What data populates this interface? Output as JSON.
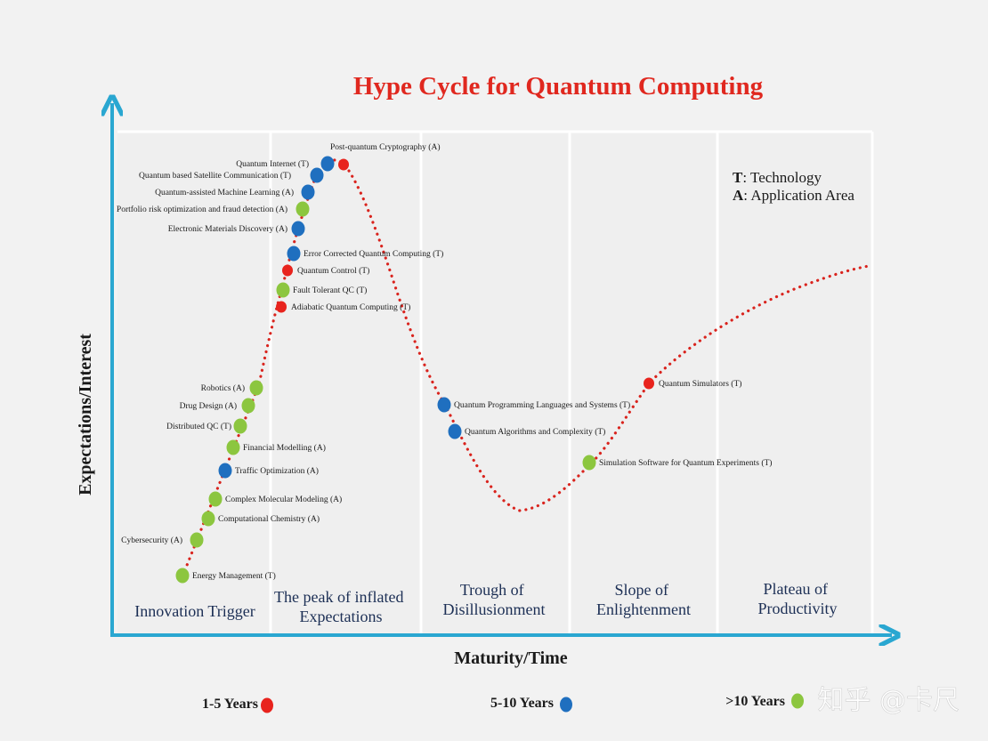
{
  "chart_data": {
    "type": "scatter",
    "title": "Hype Cycle for Quantum Computing",
    "xlabel": "Maturity/Time",
    "ylabel": "Expectations/Interest",
    "key": [
      {
        "letter": "T",
        "text": ": Technology"
      },
      {
        "letter": "A",
        "text": ": Application Area"
      }
    ],
    "phases": [
      [
        "Innovation Trigger"
      ],
      [
        "The peak of inflated",
        "Expectations"
      ],
      [
        "Trough of",
        "Disillusionment"
      ],
      [
        "Slope of",
        "Enlightenment"
      ],
      [
        "Plateau of",
        "Productivity"
      ]
    ],
    "legend": [
      {
        "label": "1-5 Years",
        "color": "#e8231d"
      },
      {
        "label": "5-10 Years",
        "color": "#1f6fbf"
      },
      {
        "label": ">10 Years",
        "color": "#8cc63f"
      }
    ],
    "curve_color": "#d9231d",
    "axis_color": "#2aa7d1",
    "items": [
      {
        "label": "Energy Management (T)",
        "category": ">10 Years",
        "label_side": "right"
      },
      {
        "label": "Cybersecurity (A)",
        "category": ">10 Years",
        "label_side": "left"
      },
      {
        "label": "Computational Chemistry (A)",
        "category": ">10 Years",
        "label_side": "right"
      },
      {
        "label": "Complex Molecular Modeling (A)",
        "category": ">10 Years",
        "label_side": "right"
      },
      {
        "label": "Traffic Optimization (A)",
        "category": "5-10 Years",
        "label_side": "right"
      },
      {
        "label": "Financial Modelling (A)",
        "category": ">10 Years",
        "label_side": "right"
      },
      {
        "label": "Distributed QC (T)",
        "category": ">10 Years",
        "label_side": "left"
      },
      {
        "label": "Drug Design (A)",
        "category": ">10 Years",
        "label_side": "left"
      },
      {
        "label": "Robotics (A)",
        "category": ">10 Years",
        "label_side": "left"
      },
      {
        "label": "Adiabatic Quantum Computing (T)",
        "category": "1-5 Years",
        "label_side": "right"
      },
      {
        "label": "Fault Tolerant QC (T)",
        "category": ">10 Years",
        "label_side": "right"
      },
      {
        "label": "Quantum Control (T)",
        "category": "1-5 Years",
        "label_side": "right"
      },
      {
        "label": "Error Corrected Quantum Computing (T)",
        "category": "5-10 Years",
        "label_side": "right"
      },
      {
        "label": "Electronic Materials Discovery (A)",
        "category": "5-10 Years",
        "label_side": "left"
      },
      {
        "label": "Portfolio risk optimization and fraud detection (A)",
        "category": ">10 Years",
        "label_side": "left"
      },
      {
        "label": "Quantum-assisted Machine Learning (A)",
        "category": "5-10 Years",
        "label_side": "left"
      },
      {
        "label": "Quantum based Satellite Communication (T)",
        "category": "5-10 Years",
        "label_side": "left"
      },
      {
        "label": "Quantum Internet (T)",
        "category": "5-10 Years",
        "label_side": "left"
      },
      {
        "label": "Post-quantum Cryptography (A)",
        "category": "1-5 Years",
        "label_side": "right"
      },
      {
        "label": "Quantum Programming Languages and Systems (T)",
        "category": "5-10 Years",
        "label_side": "right"
      },
      {
        "label": "Quantum Algorithms and Complexity (T)",
        "category": "5-10 Years",
        "label_side": "right"
      },
      {
        "label": "Simulation Software for Quantum Experiments (T)",
        "category": ">10 Years",
        "label_side": "right"
      },
      {
        "label": "Quantum Simulators (T)",
        "category": "1-5 Years",
        "label_side": "right"
      }
    ]
  },
  "watermark": "知乎 @卡尺"
}
